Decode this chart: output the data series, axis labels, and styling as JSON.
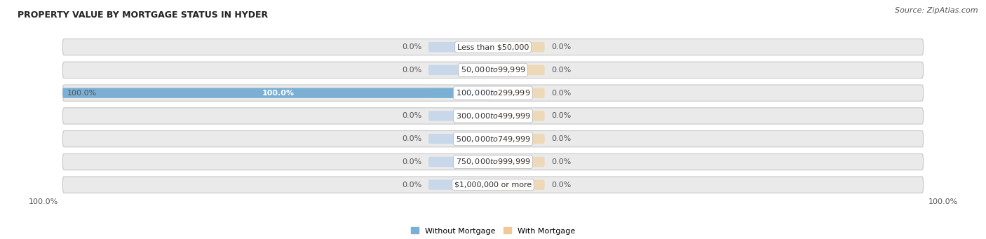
{
  "title": "PROPERTY VALUE BY MORTGAGE STATUS IN HYDER",
  "source": "Source: ZipAtlas.com",
  "categories": [
    "Less than $50,000",
    "$50,000 to $99,999",
    "$100,000 to $299,999",
    "$300,000 to $499,999",
    "$500,000 to $749,999",
    "$750,000 to $999,999",
    "$1,000,000 or more"
  ],
  "without_mortgage": [
    0.0,
    0.0,
    100.0,
    0.0,
    0.0,
    0.0,
    0.0
  ],
  "with_mortgage": [
    0.0,
    0.0,
    0.0,
    0.0,
    0.0,
    0.0,
    0.0
  ],
  "without_mortgage_color": "#7BAFD4",
  "with_mortgage_color": "#F2C898",
  "row_bg_color": "#EAEAEA",
  "row_border_color": "#D0D0D0",
  "inner_bar_bg_left": "#C8D8EA",
  "inner_bar_bg_right": "#EDD9B8",
  "label_color": "#555555",
  "white": "#FFFFFF",
  "without_mortgage_label": "Without Mortgage",
  "with_mortgage_label": "With Mortgage",
  "x_left_label": "100.0%",
  "x_right_label": "100.0%",
  "figsize": [
    14.06,
    3.41
  ],
  "dpi": 100,
  "title_fontsize": 9,
  "source_fontsize": 8,
  "label_fontsize": 8,
  "cat_fontsize": 8
}
